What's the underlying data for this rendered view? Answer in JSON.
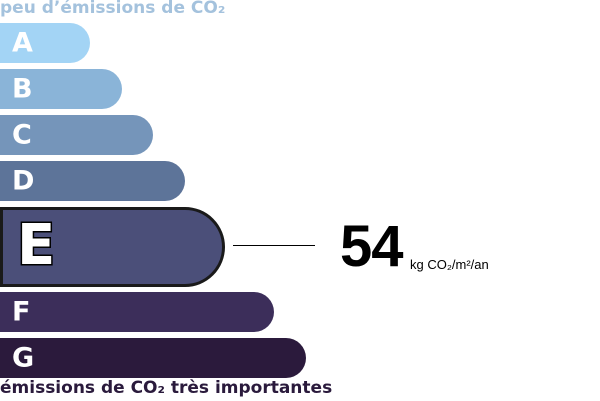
{
  "labels": {
    "top": "peu d’émissions de CO₂",
    "bottom": "émissions de CO₂ très importantes"
  },
  "chart_data": {
    "type": "bar",
    "categories": [
      "A",
      "B",
      "C",
      "D",
      "E",
      "F",
      "G"
    ],
    "active_class": "E",
    "colors": [
      "#a3d4f5",
      "#8ab4d8",
      "#7595ba",
      "#5d7499",
      "#4b4f79",
      "#3c2e5a",
      "#2b1a3c"
    ],
    "value": "54",
    "unit": "kg CO₂/m²/an"
  }
}
